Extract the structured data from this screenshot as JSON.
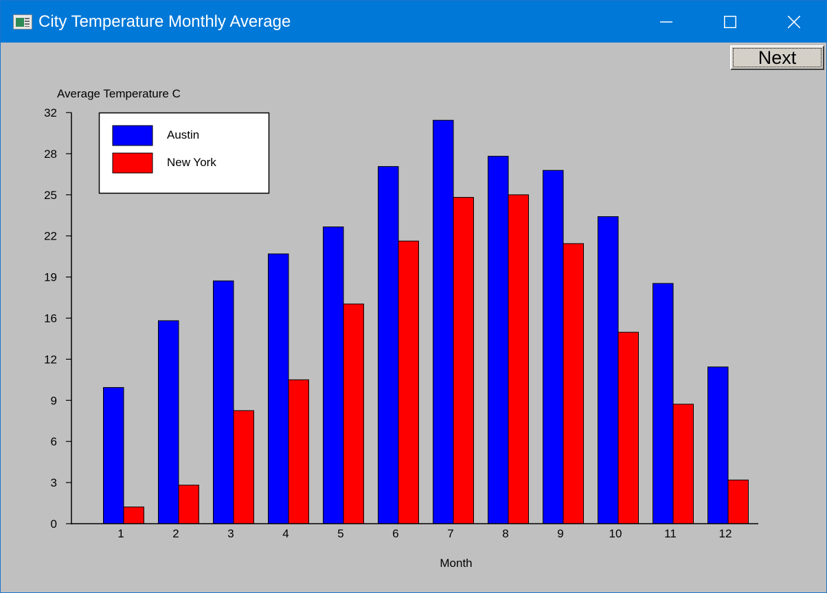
{
  "window": {
    "title": "City Temperature Monthly Average",
    "controls": [
      "minimize-icon",
      "maximize-icon",
      "close-icon"
    ]
  },
  "toolbar": {
    "next_label": "Next"
  },
  "chart_data": {
    "type": "bar",
    "xlabel": "Month",
    "ylabel": "Average Temperature C",
    "categories": [
      "1",
      "2",
      "3",
      "4",
      "5",
      "6",
      "7",
      "8",
      "9",
      "10",
      "11",
      "12"
    ],
    "y_ticks": [
      "0",
      "3",
      "6",
      "9",
      "12",
      "16",
      "19",
      "22",
      "25",
      "28",
      "32"
    ],
    "ylim": [
      0,
      32
    ],
    "series": [
      {
        "name": "Austin",
        "color": "#0000ff",
        "values": [
          10.6,
          15.8,
          18.9,
          21.0,
          23.1,
          27.8,
          31.4,
          28.6,
          27.5,
          23.9,
          18.7,
          12.2
        ]
      },
      {
        "name": "New York",
        "color": "#ff0000",
        "values": [
          1.3,
          3.0,
          8.8,
          11.2,
          17.1,
          22.0,
          25.4,
          25.6,
          21.8,
          14.9,
          9.3,
          3.4
        ]
      }
    ],
    "legend_position": "top-left",
    "grid": false
  }
}
